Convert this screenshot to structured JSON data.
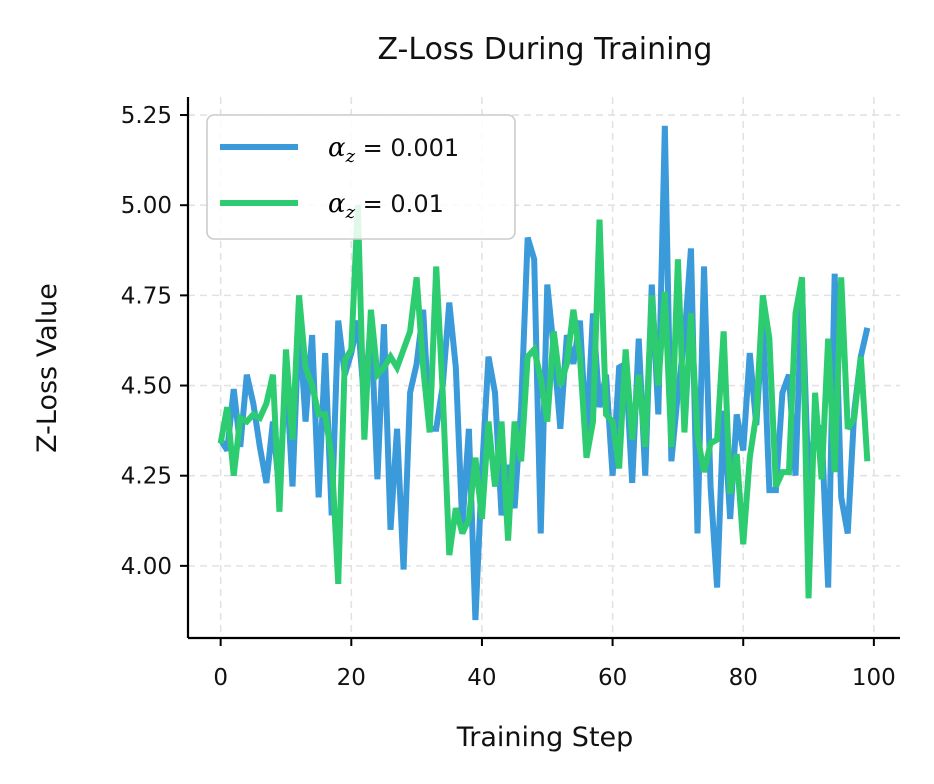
{
  "chart_data": {
    "type": "line",
    "title": "Z-Loss During Training",
    "xlabel": "Training Step",
    "ylabel": "Z-Loss Value",
    "xlim": [
      -5,
      104
    ],
    "ylim": [
      3.8,
      5.3
    ],
    "xticks": [
      0,
      20,
      40,
      60,
      80,
      100
    ],
    "xtick_labels": [
      "0",
      "20",
      "40",
      "60",
      "80",
      "100"
    ],
    "yticks": [
      4.0,
      4.25,
      4.5,
      4.75,
      5.0,
      5.25
    ],
    "ytick_labels": [
      "4.00",
      "4.25",
      "4.50",
      "4.75",
      "5.00",
      "5.25"
    ],
    "grid": true,
    "legend_position": "top-left",
    "series": [
      {
        "name": "αz = 0.001",
        "legend_symbol": "α",
        "legend_subscript": "z",
        "legend_rest": " = 0.001",
        "color": "#3b9ad9",
        "x_start": 0,
        "values": [
          4.35,
          4.32,
          4.49,
          4.33,
          4.53,
          4.45,
          4.33,
          4.23,
          4.4,
          4.2,
          4.55,
          4.22,
          4.68,
          4.4,
          4.64,
          4.19,
          4.59,
          4.14,
          4.68,
          4.53,
          4.59,
          4.68,
          4.45,
          4.68,
          4.24,
          4.67,
          4.1,
          4.38,
          3.99,
          4.48,
          4.56,
          4.71,
          4.38,
          4.38,
          4.5,
          4.73,
          4.55,
          4.11,
          4.38,
          3.85,
          4.26,
          4.58,
          4.48,
          4.14,
          4.28,
          4.16,
          4.44,
          4.91,
          4.85,
          4.09,
          4.78,
          4.6,
          4.38,
          4.64,
          4.56,
          4.68,
          4.35,
          4.7,
          4.44,
          4.53,
          4.25,
          4.55,
          4.56,
          4.23,
          4.63,
          4.25,
          4.78,
          4.42,
          5.22,
          4.29,
          4.48,
          4.63,
          4.88,
          4.09,
          4.83,
          4.22,
          3.94,
          4.43,
          4.13,
          4.42,
          4.32,
          4.59,
          4.39,
          4.68,
          4.21,
          4.21,
          4.48,
          4.53,
          4.25,
          4.77,
          4.22,
          4.39,
          4.38,
          3.94,
          4.81,
          4.19,
          4.09,
          4.43,
          4.58,
          4.66
        ]
      },
      {
        "name": "αz = 0.01",
        "legend_symbol": "α",
        "legend_subscript": "z",
        "legend_rest": " = 0.01",
        "color": "#2ecc71",
        "x_start": 0,
        "values": [
          4.34,
          4.44,
          4.25,
          4.41,
          4.4,
          4.42,
          4.41,
          4.45,
          4.53,
          4.15,
          4.6,
          4.35,
          4.75,
          4.55,
          4.5,
          4.42,
          4.42,
          4.3,
          3.95,
          4.57,
          4.6,
          5.0,
          4.35,
          4.71,
          4.53,
          4.55,
          4.58,
          4.55,
          4.6,
          4.65,
          4.8,
          4.55,
          4.37,
          4.83,
          4.48,
          4.03,
          4.16,
          4.09,
          4.13,
          4.3,
          4.13,
          4.4,
          4.22,
          4.4,
          4.07,
          4.4,
          4.29,
          4.58,
          4.6,
          4.52,
          4.4,
          4.65,
          4.5,
          4.56,
          4.71,
          4.58,
          4.3,
          4.4,
          4.96,
          4.42,
          4.4,
          4.27,
          4.6,
          4.35,
          4.53,
          4.33,
          4.75,
          4.5,
          4.76,
          4.33,
          4.85,
          4.37,
          4.7,
          4.36,
          4.26,
          4.34,
          4.35,
          4.65,
          4.2,
          4.31,
          4.06,
          4.3,
          4.42,
          4.75,
          4.63,
          4.22,
          4.26,
          4.26,
          4.7,
          4.8,
          3.91,
          4.48,
          4.24,
          4.63,
          4.26,
          4.8,
          4.38,
          4.41,
          4.58,
          4.29
        ]
      }
    ]
  }
}
